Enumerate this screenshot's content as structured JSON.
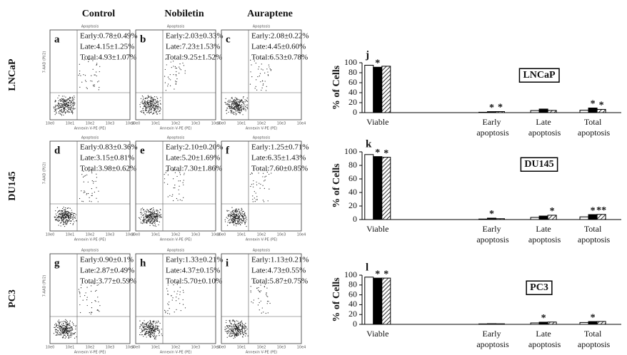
{
  "panels": {
    "columns": [
      "Control",
      "Nobiletin",
      "Auraptene"
    ],
    "plot_title": "Apoptosis",
    "y_label": "7-AAD (PI/2)",
    "x_label": "Annexin V-PE (PE)",
    "ticks": [
      "10e0",
      "10e1",
      "10e2",
      "10e3",
      "10e4"
    ],
    "rows": [
      {
        "label": "LNCaP",
        "cells": [
          {
            "letter": "a",
            "early": "Early:0.78±0.49%",
            "late": "Late:4.15±1.25%",
            "total": "Total:4.93±1.07%"
          },
          {
            "letter": "b",
            "early": "Early:2.03±0.33%",
            "late": "Late:7.23±1.53%",
            "total": "Total:9.25±1.52%"
          },
          {
            "letter": "c",
            "early": "Early:2.08±0.22%",
            "late": "Late:4.45±0.60%",
            "total": "Total:6.53±0.78%"
          }
        ]
      },
      {
        "label": "DU145",
        "cells": [
          {
            "letter": "d",
            "early": "Early:0.83±0.36%",
            "late": "Late:3.15±0.81%",
            "total": "Total:3.98±0.62%"
          },
          {
            "letter": "e",
            "early": "Early:2.10±0.20%",
            "late": "Late:5.20±1.69%",
            "total": "Total:7.30±1.86%"
          },
          {
            "letter": "f",
            "early": "Early:1.25±0.71%",
            "late": "Late:6.35±1.43%",
            "total": "Total:7.60±0.85%"
          }
        ]
      },
      {
        "label": "PC3",
        "cells": [
          {
            "letter": "g",
            "early": "Early:0.90±0.1%",
            "late": "Late:2.87±0.49%",
            "total": "Total:3.77±0.59%"
          },
          {
            "letter": "h",
            "early": "Early:1.33±0.21%",
            "late": "Late:4.37±0.15%",
            "total": "Total:5.70±0.10%"
          },
          {
            "letter": "i",
            "early": "Early:1.13±0.21%",
            "late": "Late:4.73±0.55%",
            "total": "Total:5.87±0.75%"
          }
        ]
      }
    ]
  },
  "chart_data": [
    {
      "type": "bar",
      "letter": "j",
      "title": "LNCaP",
      "y_label": "% of Cells",
      "categories": [
        "Viable",
        "Early apoptosis",
        "Late apoptosis",
        "Total apoptosis"
      ],
      "ylim": [
        0,
        100
      ],
      "yticks": [
        0,
        20,
        40,
        60,
        80,
        100
      ],
      "series": [
        {
          "color": "#ffffff",
          "values": [
            95,
            0.8,
            4.2,
            4.9
          ],
          "significance": [
            null,
            null,
            null,
            null
          ]
        },
        {
          "color": "#000000",
          "values": [
            91,
            2.0,
            7.2,
            9.3
          ],
          "significance": [
            "*",
            "*",
            null,
            "*"
          ]
        },
        {
          "color": "hatch",
          "values": [
            93,
            2.1,
            4.5,
            6.5
          ],
          "significance": [
            null,
            "*",
            null,
            "*"
          ]
        }
      ]
    },
    {
      "type": "bar",
      "letter": "k",
      "title": "DU145",
      "y_label": "% of Cells",
      "categories": [
        "Viable",
        "Early apoptosis",
        "Late apoptosis",
        "Total apoptosis"
      ],
      "ylim": [
        0,
        100
      ],
      "yticks": [
        0,
        20,
        40,
        60,
        80,
        100
      ],
      "series": [
        {
          "color": "#ffffff",
          "values": [
            96,
            0.8,
            3.2,
            4.0
          ],
          "significance": [
            null,
            null,
            null,
            null
          ]
        },
        {
          "color": "#000000",
          "values": [
            93,
            2.1,
            5.2,
            7.3
          ],
          "significance": [
            "*",
            "*",
            null,
            "*"
          ]
        },
        {
          "color": "hatch",
          "values": [
            92,
            1.3,
            6.4,
            7.6
          ],
          "significance": [
            "*",
            null,
            "*",
            "**"
          ]
        }
      ]
    },
    {
      "type": "bar",
      "letter": "l",
      "title": "PC3",
      "y_label": "% of Cells",
      "categories": [
        "Viable",
        "Early apoptosis",
        "Late apoptosis",
        "Total apoptosis"
      ],
      "ylim": [
        0,
        100
      ],
      "yticks": [
        0,
        20,
        40,
        60,
        80,
        100
      ],
      "series": [
        {
          "color": "#ffffff",
          "values": [
            96,
            0.9,
            2.9,
            3.8
          ],
          "significance": [
            null,
            null,
            null,
            null
          ]
        },
        {
          "color": "#000000",
          "values": [
            94,
            1.3,
            4.4,
            5.7
          ],
          "significance": [
            "*",
            null,
            "*",
            "*"
          ]
        },
        {
          "color": "hatch",
          "values": [
            94,
            1.1,
            4.7,
            5.9
          ],
          "significance": [
            "*",
            null,
            null,
            null
          ]
        }
      ]
    }
  ]
}
